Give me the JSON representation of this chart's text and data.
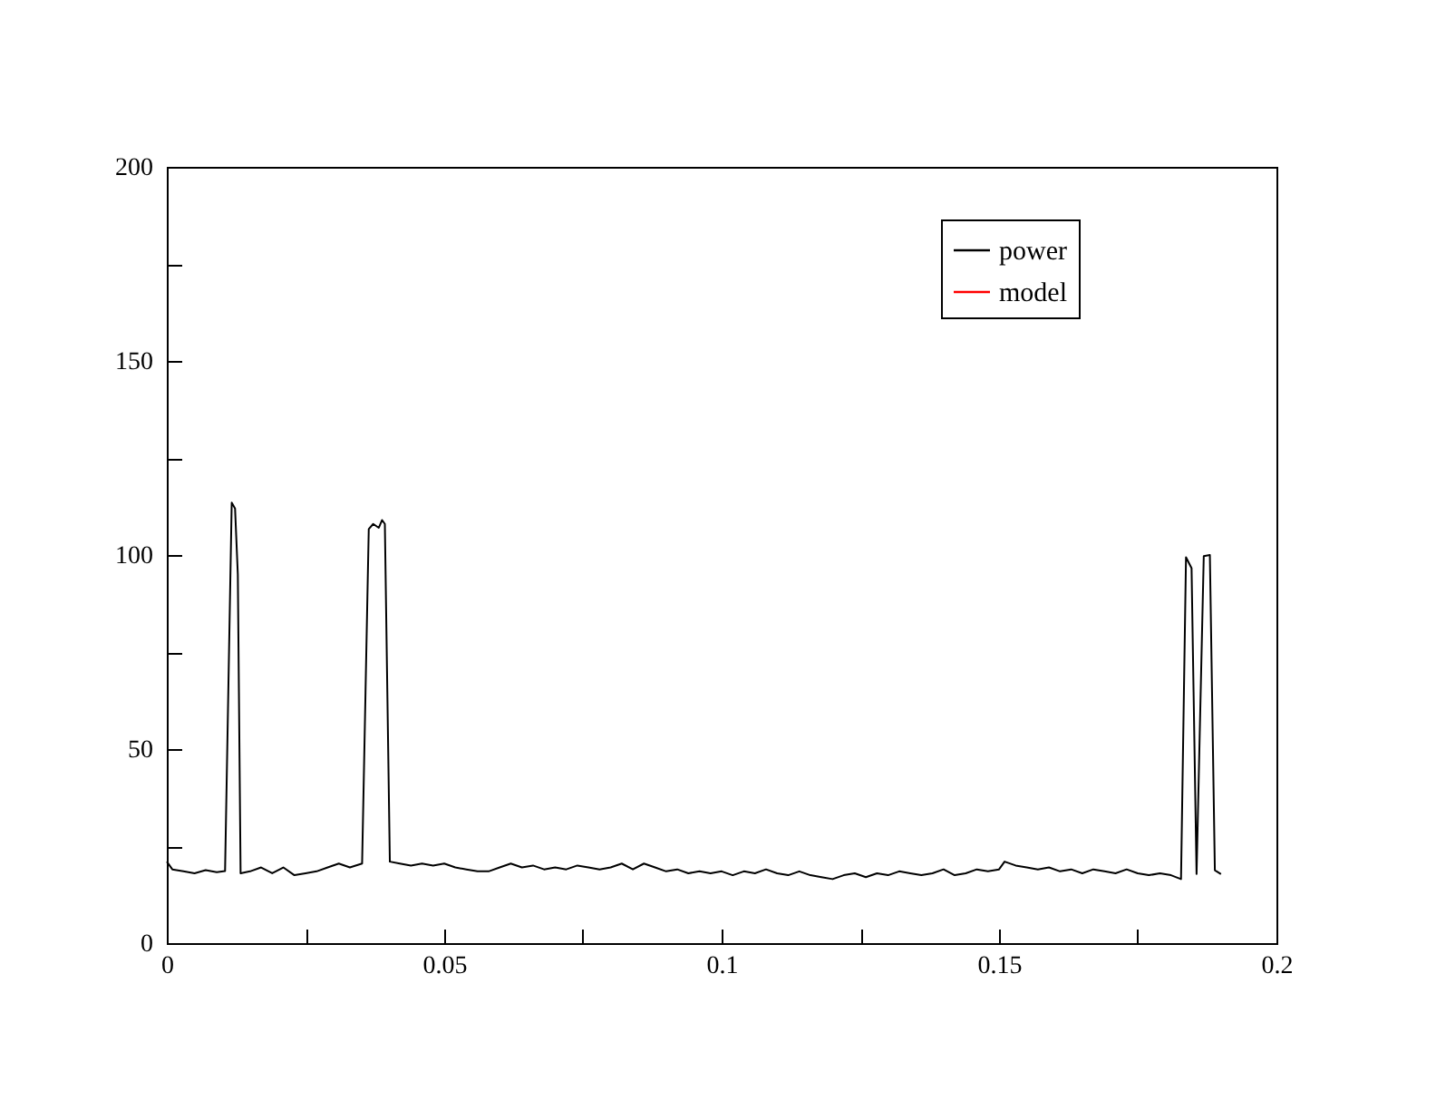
{
  "chart_data": {
    "type": "line",
    "xlim": [
      0,
      0.2
    ],
    "ylim": [
      0,
      200
    ],
    "xticks": [
      0,
      {
        "value": 0.025,
        "label": null
      },
      0.05,
      {
        "value": 0.075,
        "label": null
      },
      0.1,
      {
        "value": 0.125,
        "label": null
      },
      0.15,
      {
        "value": 0.175,
        "label": null
      },
      0.2
    ],
    "yticks": [
      0,
      {
        "value": 25,
        "label": null
      },
      50,
      {
        "value": 75,
        "label": null
      },
      100,
      {
        "value": 125,
        "label": null
      },
      150,
      {
        "value": 175,
        "label": null
      },
      200
    ],
    "legend": "top right",
    "grid": false,
    "series": [
      {
        "name": "power",
        "color": "#000000",
        "x": [
          0,
          0.001,
          0.003,
          0.005,
          0.007,
          0.009,
          0.0105,
          0.0117,
          0.0123,
          0.0128,
          0.0133,
          0.015,
          0.017,
          0.019,
          0.021,
          0.023,
          0.025,
          0.027,
          0.029,
          0.031,
          0.033,
          0.0352,
          0.0364,
          0.0372,
          0.0382,
          0.0388,
          0.0393,
          0.0402,
          0.042,
          0.044,
          0.046,
          0.048,
          0.05,
          0.052,
          0.054,
          0.056,
          0.058,
          0.06,
          0.062,
          0.064,
          0.066,
          0.068,
          0.07,
          0.072,
          0.074,
          0.076,
          0.078,
          0.08,
          0.082,
          0.084,
          0.086,
          0.088,
          0.09,
          0.092,
          0.094,
          0.096,
          0.098,
          0.1,
          0.102,
          0.104,
          0.106,
          0.108,
          0.11,
          0.112,
          0.114,
          0.116,
          0.118,
          0.12,
          0.122,
          0.124,
          0.126,
          0.128,
          0.13,
          0.132,
          0.134,
          0.136,
          0.138,
          0.14,
          0.142,
          0.144,
          0.146,
          0.148,
          0.15,
          0.151,
          0.153,
          0.155,
          0.157,
          0.159,
          0.161,
          0.163,
          0.165,
          0.167,
          0.169,
          0.171,
          0.173,
          0.175,
          0.177,
          0.179,
          0.181,
          0.1828,
          0.1837,
          0.1847,
          0.1856,
          0.1869,
          0.188,
          0.1889,
          0.19
        ],
        "values": [
          21,
          19,
          18.5,
          18,
          18.8,
          18.3,
          18.6,
          113.5,
          112,
          95,
          18,
          18.5,
          19.5,
          18,
          19.5,
          17.5,
          18,
          18.5,
          19.5,
          20.5,
          19.5,
          20.5,
          106.7,
          108,
          107,
          109,
          108,
          21,
          20.5,
          20,
          20.5,
          20,
          20.5,
          19.5,
          19,
          18.5,
          18.5,
          19.5,
          20.5,
          19.5,
          20,
          19,
          19.5,
          19,
          20,
          19.5,
          19,
          19.5,
          20.5,
          19,
          20.5,
          19.5,
          18.5,
          19,
          18,
          18.5,
          18,
          18.5,
          17.5,
          18.5,
          18,
          19,
          18,
          17.5,
          18.5,
          17.5,
          17,
          16.5,
          17.5,
          18,
          17,
          18,
          17.5,
          18.5,
          18,
          17.5,
          18,
          19,
          17.5,
          18,
          19,
          18.5,
          19,
          21,
          20,
          19.5,
          19,
          19.5,
          18.5,
          19,
          18,
          19,
          18.5,
          18,
          19,
          18,
          17.5,
          18,
          17.5,
          16.5,
          99.4,
          96.6,
          17.8,
          99.7,
          100,
          18.8,
          17.8
        ]
      },
      {
        "name": "model",
        "color": "#ff0000"
      }
    ]
  }
}
